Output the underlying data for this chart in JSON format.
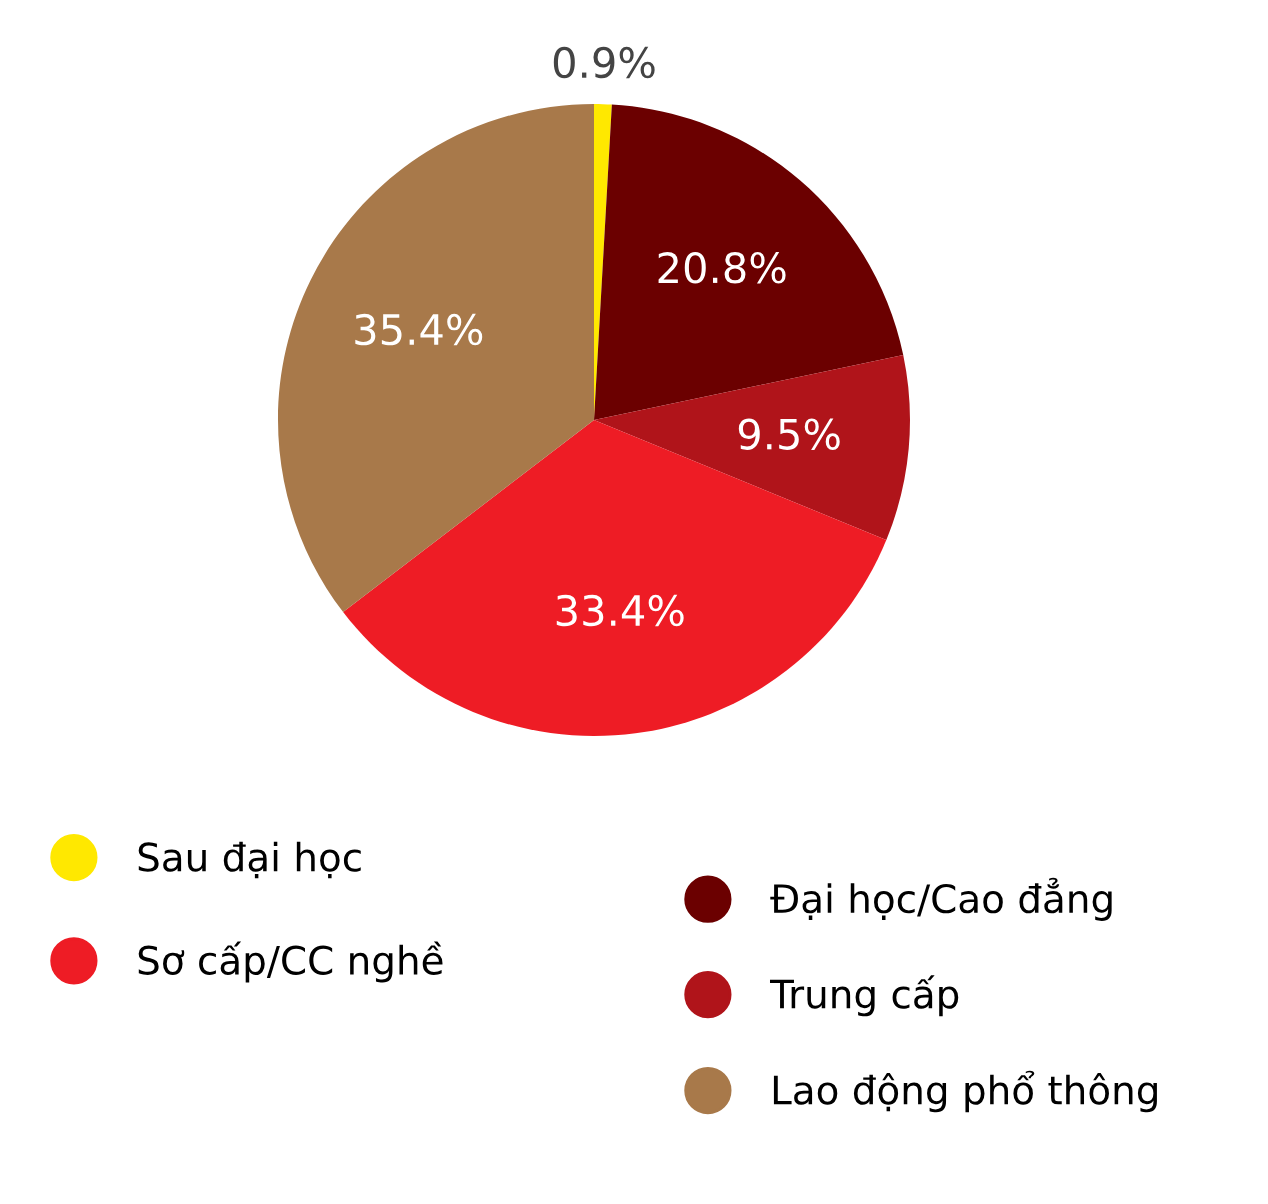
{
  "chart_data": {
    "type": "pie",
    "categories": [
      "Sau đại học",
      "Đại học/Cao đẳng",
      "Trung cấp",
      "Sơ cấp/CC nghề",
      "Lao động phổ thông"
    ],
    "values": [
      0.9,
      20.8,
      9.5,
      33.4,
      35.4
    ],
    "value_labels": [
      "0.9%",
      "20.8%",
      "9.5%",
      "33.4%",
      "35.4%"
    ],
    "colors": [
      "#ffe800",
      "#6b0000",
      "#b0141a",
      "#ee1c25",
      "#a8794a"
    ],
    "legend": "bottom"
  }
}
